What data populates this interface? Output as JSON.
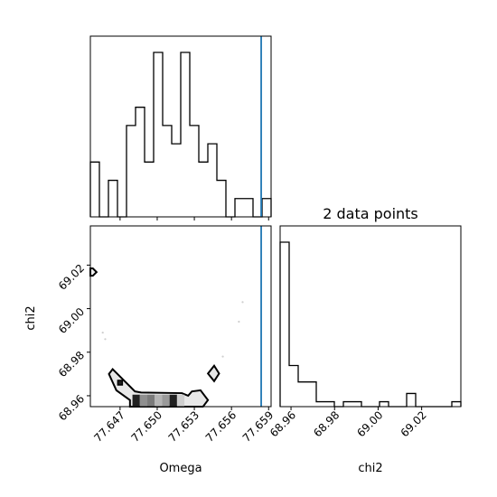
{
  "chart_data": [
    {
      "panel": "Omega-histogram",
      "type": "histogram",
      "x_range": [
        77.6446,
        77.6592
      ],
      "bins": 20,
      "counts": [
        3,
        0,
        2,
        0,
        5,
        6,
        3,
        9,
        5,
        4,
        9,
        5,
        3,
        4,
        2,
        0,
        1,
        1,
        0,
        1
      ],
      "truth_line": {
        "x": 77.6584,
        "color": "#1f77b4"
      }
    },
    {
      "panel": "chi2-histogram",
      "type": "histogram",
      "title": "2 data points",
      "x_range": [
        68.955,
        69.038
      ],
      "bins": 20,
      "counts": [
        10,
        2.5,
        1.5,
        1.5,
        0.3,
        0.3,
        0,
        0.3,
        0.3,
        0,
        0,
        0.3,
        0,
        0,
        0.8,
        0,
        0,
        0,
        0,
        0.3
      ]
    },
    {
      "panel": "Omega-chi2-2D",
      "type": "contour",
      "xlabel": "Omega",
      "ylabel": "chi2",
      "xlim": [
        77.6446,
        77.6592
      ],
      "ylim": [
        68.955,
        69.038
      ],
      "xticks": [
        77.647,
        77.65,
        77.653,
        77.656,
        77.659
      ],
      "xtick_labels": [
        "77.647",
        "77.650",
        "77.653",
        "77.656",
        "77.659"
      ],
      "yticks": [
        68.96,
        68.98,
        69.0,
        69.02
      ],
      "ytick_labels": [
        "68.96",
        "68.98",
        "69.00",
        "69.02"
      ],
      "truth_line": {
        "x": 77.6584,
        "color": "#1f77b4"
      }
    }
  ],
  "bottom_right": {
    "xlabel": "chi2",
    "xticks": [
      68.96,
      68.98,
      69.0,
      69.02
    ],
    "xtick_labels": [
      "68.96",
      "68.98",
      "69.00",
      "69.02"
    ]
  }
}
